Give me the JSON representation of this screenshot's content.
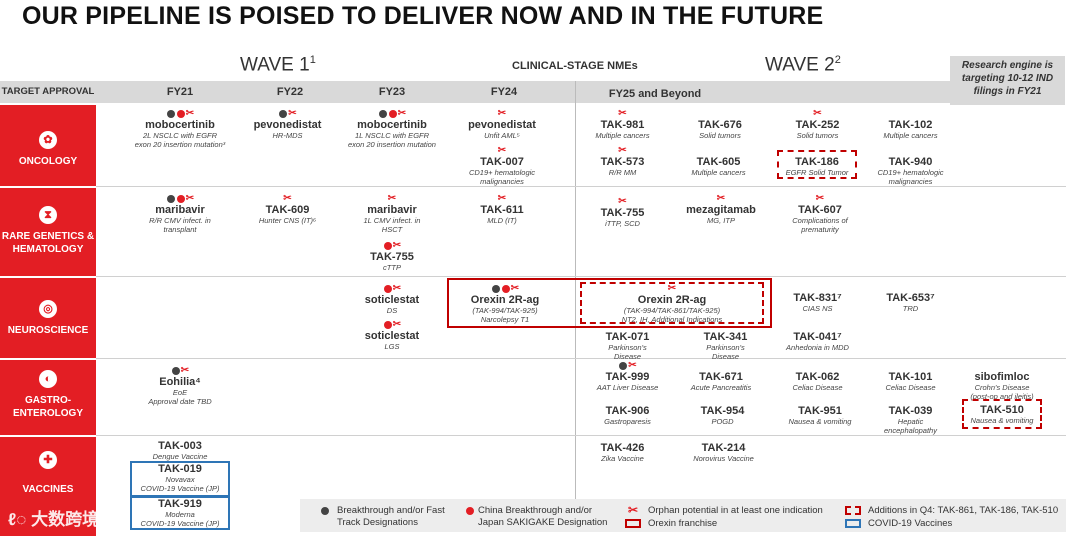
{
  "title": "OUR PIPELINE IS POISED TO DELIVER NOW AND IN THE FUTURE",
  "wave1": {
    "label": "WAVE 1",
    "sup": "1"
  },
  "wave2": {
    "label": "WAVE 2",
    "sup": "2"
  },
  "clinical_stage": "CLINICAL-STAGE NMEs",
  "research_note": "Research engine is targeting 10-12 IND filings in FY21",
  "header": {
    "target_approval": "TARGET APPROVAL",
    "fy21": "FY21",
    "fy22": "FY22",
    "fy23": "FY23",
    "fy24": "FY24",
    "fy25": "FY25 and Beyond"
  },
  "categories": {
    "oncology": "ONCOLOGY",
    "rare_1": "RARE GENETICS &",
    "rare_2": "HEMATOLOGY",
    "neuro": "NEUROSCIENCE",
    "gastro_1": "GASTRO-",
    "gastro_2": "ENTEROLOGY",
    "vaccines": "VACCINES"
  },
  "items": {
    "mobo21": {
      "name": "mobocertinib",
      "d1": "2L NSCLC with EGFR",
      "d2": "exon 20 insertion mutation³"
    },
    "pevo22": {
      "name": "pevonedistat",
      "d1": "HR-MDS"
    },
    "mobo23": {
      "name": "mobocertinib",
      "d1": "1L NSCLC with EGFR",
      "d2": "exon 20 insertion mutation"
    },
    "pevo24": {
      "name": "pevonedistat",
      "d1": "Unfit AML⁵"
    },
    "tak007": {
      "name": "TAK-007",
      "d1": "CD19+ hematologic",
      "d2": "malignancies"
    },
    "tak981": {
      "name": "TAK-981",
      "d1": "Multiple cancers"
    },
    "tak676": {
      "name": "TAK-676",
      "d1": "Solid tumors"
    },
    "tak252": {
      "name": "TAK-252",
      "d1": "Solid tumors"
    },
    "tak102": {
      "name": "TAK-102",
      "d1": "Multiple cancers"
    },
    "tak573": {
      "name": "TAK-573",
      "d1": "R/R MM"
    },
    "tak605": {
      "name": "TAK-605",
      "d1": "Multiple cancers"
    },
    "tak186": {
      "name": "TAK-186",
      "d1": "EGFR Solid Tumor"
    },
    "tak940": {
      "name": "TAK-940",
      "d1": "CD19+ hematologic",
      "d2": "malignancies"
    },
    "mari21": {
      "name": "maribavir",
      "d1": "R/R CMV infect. in",
      "d2": "transplant"
    },
    "tak609": {
      "name": "TAK-609",
      "d1": "Hunter CNS (IT)⁶"
    },
    "mari23": {
      "name": "maribavir",
      "d1": "1L CMV infect. in",
      "d2": "HSCT"
    },
    "tak755a": {
      "name": "TAK-755",
      "d1": "cTTP"
    },
    "tak611": {
      "name": "TAK-611",
      "d1": "MLD (IT)"
    },
    "tak755b": {
      "name": "TAK-755",
      "d1": "iTTP, SCD"
    },
    "meza": {
      "name": "mezagitamab",
      "d1": "MG, ITP"
    },
    "tak607": {
      "name": "TAK-607",
      "d1": "Complications of",
      "d2": "prematurity"
    },
    "soti_ds": {
      "name": "soticlestat",
      "d1": "DS"
    },
    "soti_lgs": {
      "name": "soticlestat",
      "d1": "LGS"
    },
    "orexin24": {
      "name": "Orexin 2R-ag",
      "d1": "(TAK-994/TAK-925)",
      "d2": "Narcolepsy T1"
    },
    "orexin25": {
      "name": "Orexin 2R-ag",
      "d1": "(TAK-994/TAK-861/TAK-925)",
      "d2": "NT2, IH, Additional Indications"
    },
    "tak831": {
      "name": "TAK-831⁷",
      "d1": "CIAS NS"
    },
    "tak653": {
      "name": "TAK-653⁷",
      "d1": "TRD"
    },
    "tak071": {
      "name": "TAK-071",
      "d1": "Parkinson's",
      "d2": "Disease"
    },
    "tak341": {
      "name": "TAK-341",
      "d1": "Parkinson's",
      "d2": "Disease"
    },
    "tak041": {
      "name": "TAK-041⁷",
      "d1": "Anhedonia in MDD"
    },
    "eohilia": {
      "name": "Eohilia⁴",
      "d1": "EoE",
      "d2": "Approval date TBD"
    },
    "tak999": {
      "name": "TAK-999",
      "d1": "AAT Liver Disease"
    },
    "tak671": {
      "name": "TAK-671",
      "d1": "Acute Pancreatitis"
    },
    "tak062": {
      "name": "TAK-062",
      "d1": "Celiac Disease"
    },
    "tak101": {
      "name": "TAK-101",
      "d1": "Celiac Disease"
    },
    "sibo": {
      "name": "sibofimloc",
      "d1": "Crohn's Disease",
      "d2": "(post-op and ileitis)"
    },
    "tak906": {
      "name": "TAK-906",
      "d1": "Gastroparesis"
    },
    "tak954": {
      "name": "TAK-954",
      "d1": "POGD"
    },
    "tak951": {
      "name": "TAK-951",
      "d1": "Nausea & vomiting"
    },
    "tak039": {
      "name": "TAK-039",
      "d1": "Hepatic",
      "d2": "encephalopathy"
    },
    "tak510": {
      "name": "TAK-510",
      "d1": "Nausea & vomiting"
    },
    "tak003": {
      "name": "TAK-003",
      "d1": "Dengue Vaccine"
    },
    "tak019": {
      "name": "TAK-019",
      "d1": "Novavax",
      "d2": "COVID-19 Vaccine (JP)"
    },
    "tak919": {
      "name": "TAK-919",
      "d1": "Moderna",
      "d2": "COVID-19 Vaccine (JP)"
    },
    "tak426": {
      "name": "TAK-426",
      "d1": "Zika Vaccine"
    },
    "tak214": {
      "name": "TAK-214",
      "d1": "Norovirus Vaccine"
    }
  },
  "legend": {
    "breakthrough_1": "Breakthrough and/or Fast",
    "breakthrough_2": "Track Designations",
    "china_1": "China Breakthrough and/or",
    "china_2": "Japan SAKIGAKE Designation",
    "orphan": "Orphan potential in at least one indication",
    "orexin": "Orexin franchise",
    "additions": "Additions in Q4: TAK-861, TAK-186, TAK-510",
    "covid": "COVID-19 Vaccines"
  },
  "watermark": "大数跨境",
  "colors": {
    "red": "#e31e24",
    "grey_band": "#d9d9d9",
    "blue": "#2e75b6",
    "dark_red": "#c00000"
  },
  "icons": {
    "orphan": "dna-icon",
    "breakthrough": "grey-dot",
    "china": "red-dot"
  }
}
